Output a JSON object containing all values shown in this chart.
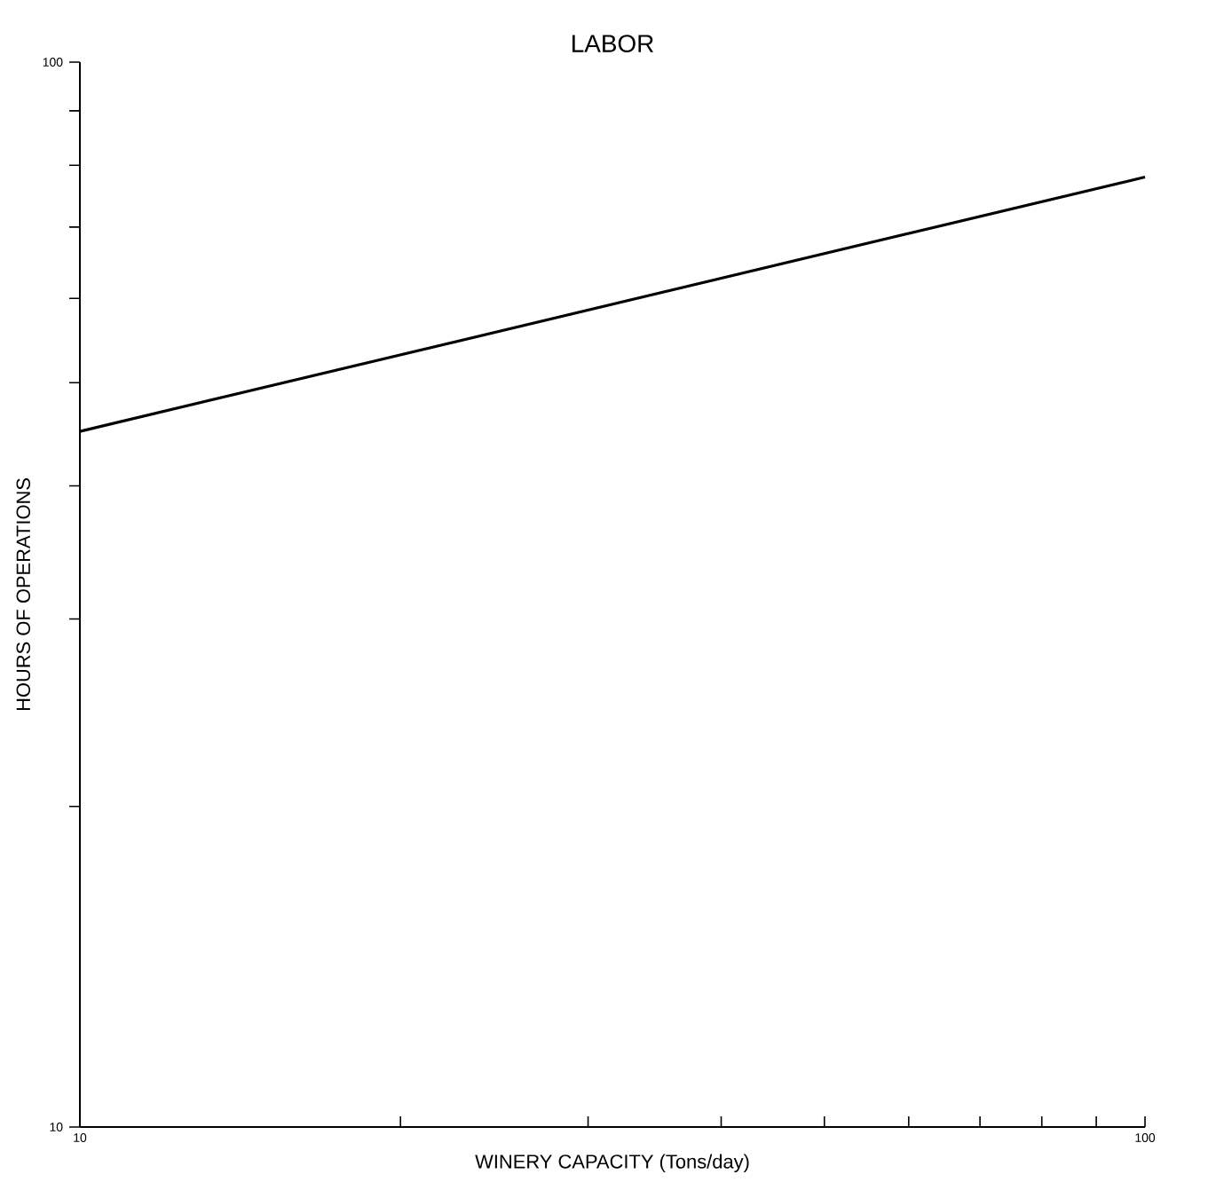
{
  "chart_data": {
    "type": "line",
    "title": "LABOR",
    "xlabel": "WINERY CAPACITY (Tons/day)",
    "ylabel": "HOURS OF OPERATIONS",
    "log": "xy",
    "x": [
      10,
      100
    ],
    "series": [
      {
        "color": "#000000",
        "values": [
          45,
          78
        ]
      }
    ],
    "xlim": [
      10,
      100
    ],
    "ylim": [
      10,
      100
    ],
    "xticks": [
      10,
      {
        "value": 20,
        "label": null
      },
      {
        "value": 30,
        "label": null
      },
      {
        "value": 40,
        "label": null
      },
      {
        "value": 50,
        "label": null
      },
      {
        "value": 60,
        "label": null
      },
      {
        "value": 70,
        "label": null
      },
      {
        "value": 80,
        "label": null
      },
      {
        "value": 90,
        "label": null
      },
      100
    ],
    "yticks": [
      10,
      {
        "value": 20,
        "label": null
      },
      {
        "value": 30,
        "label": null
      },
      {
        "value": 40,
        "label": null
      },
      {
        "value": 50,
        "label": null
      },
      {
        "value": 60,
        "label": null
      },
      {
        "value": 70,
        "label": null
      },
      {
        "value": 80,
        "label": null
      },
      {
        "value": 90,
        "label": null
      },
      100
    ],
    "marker": "none",
    "line_style": "solid"
  }
}
